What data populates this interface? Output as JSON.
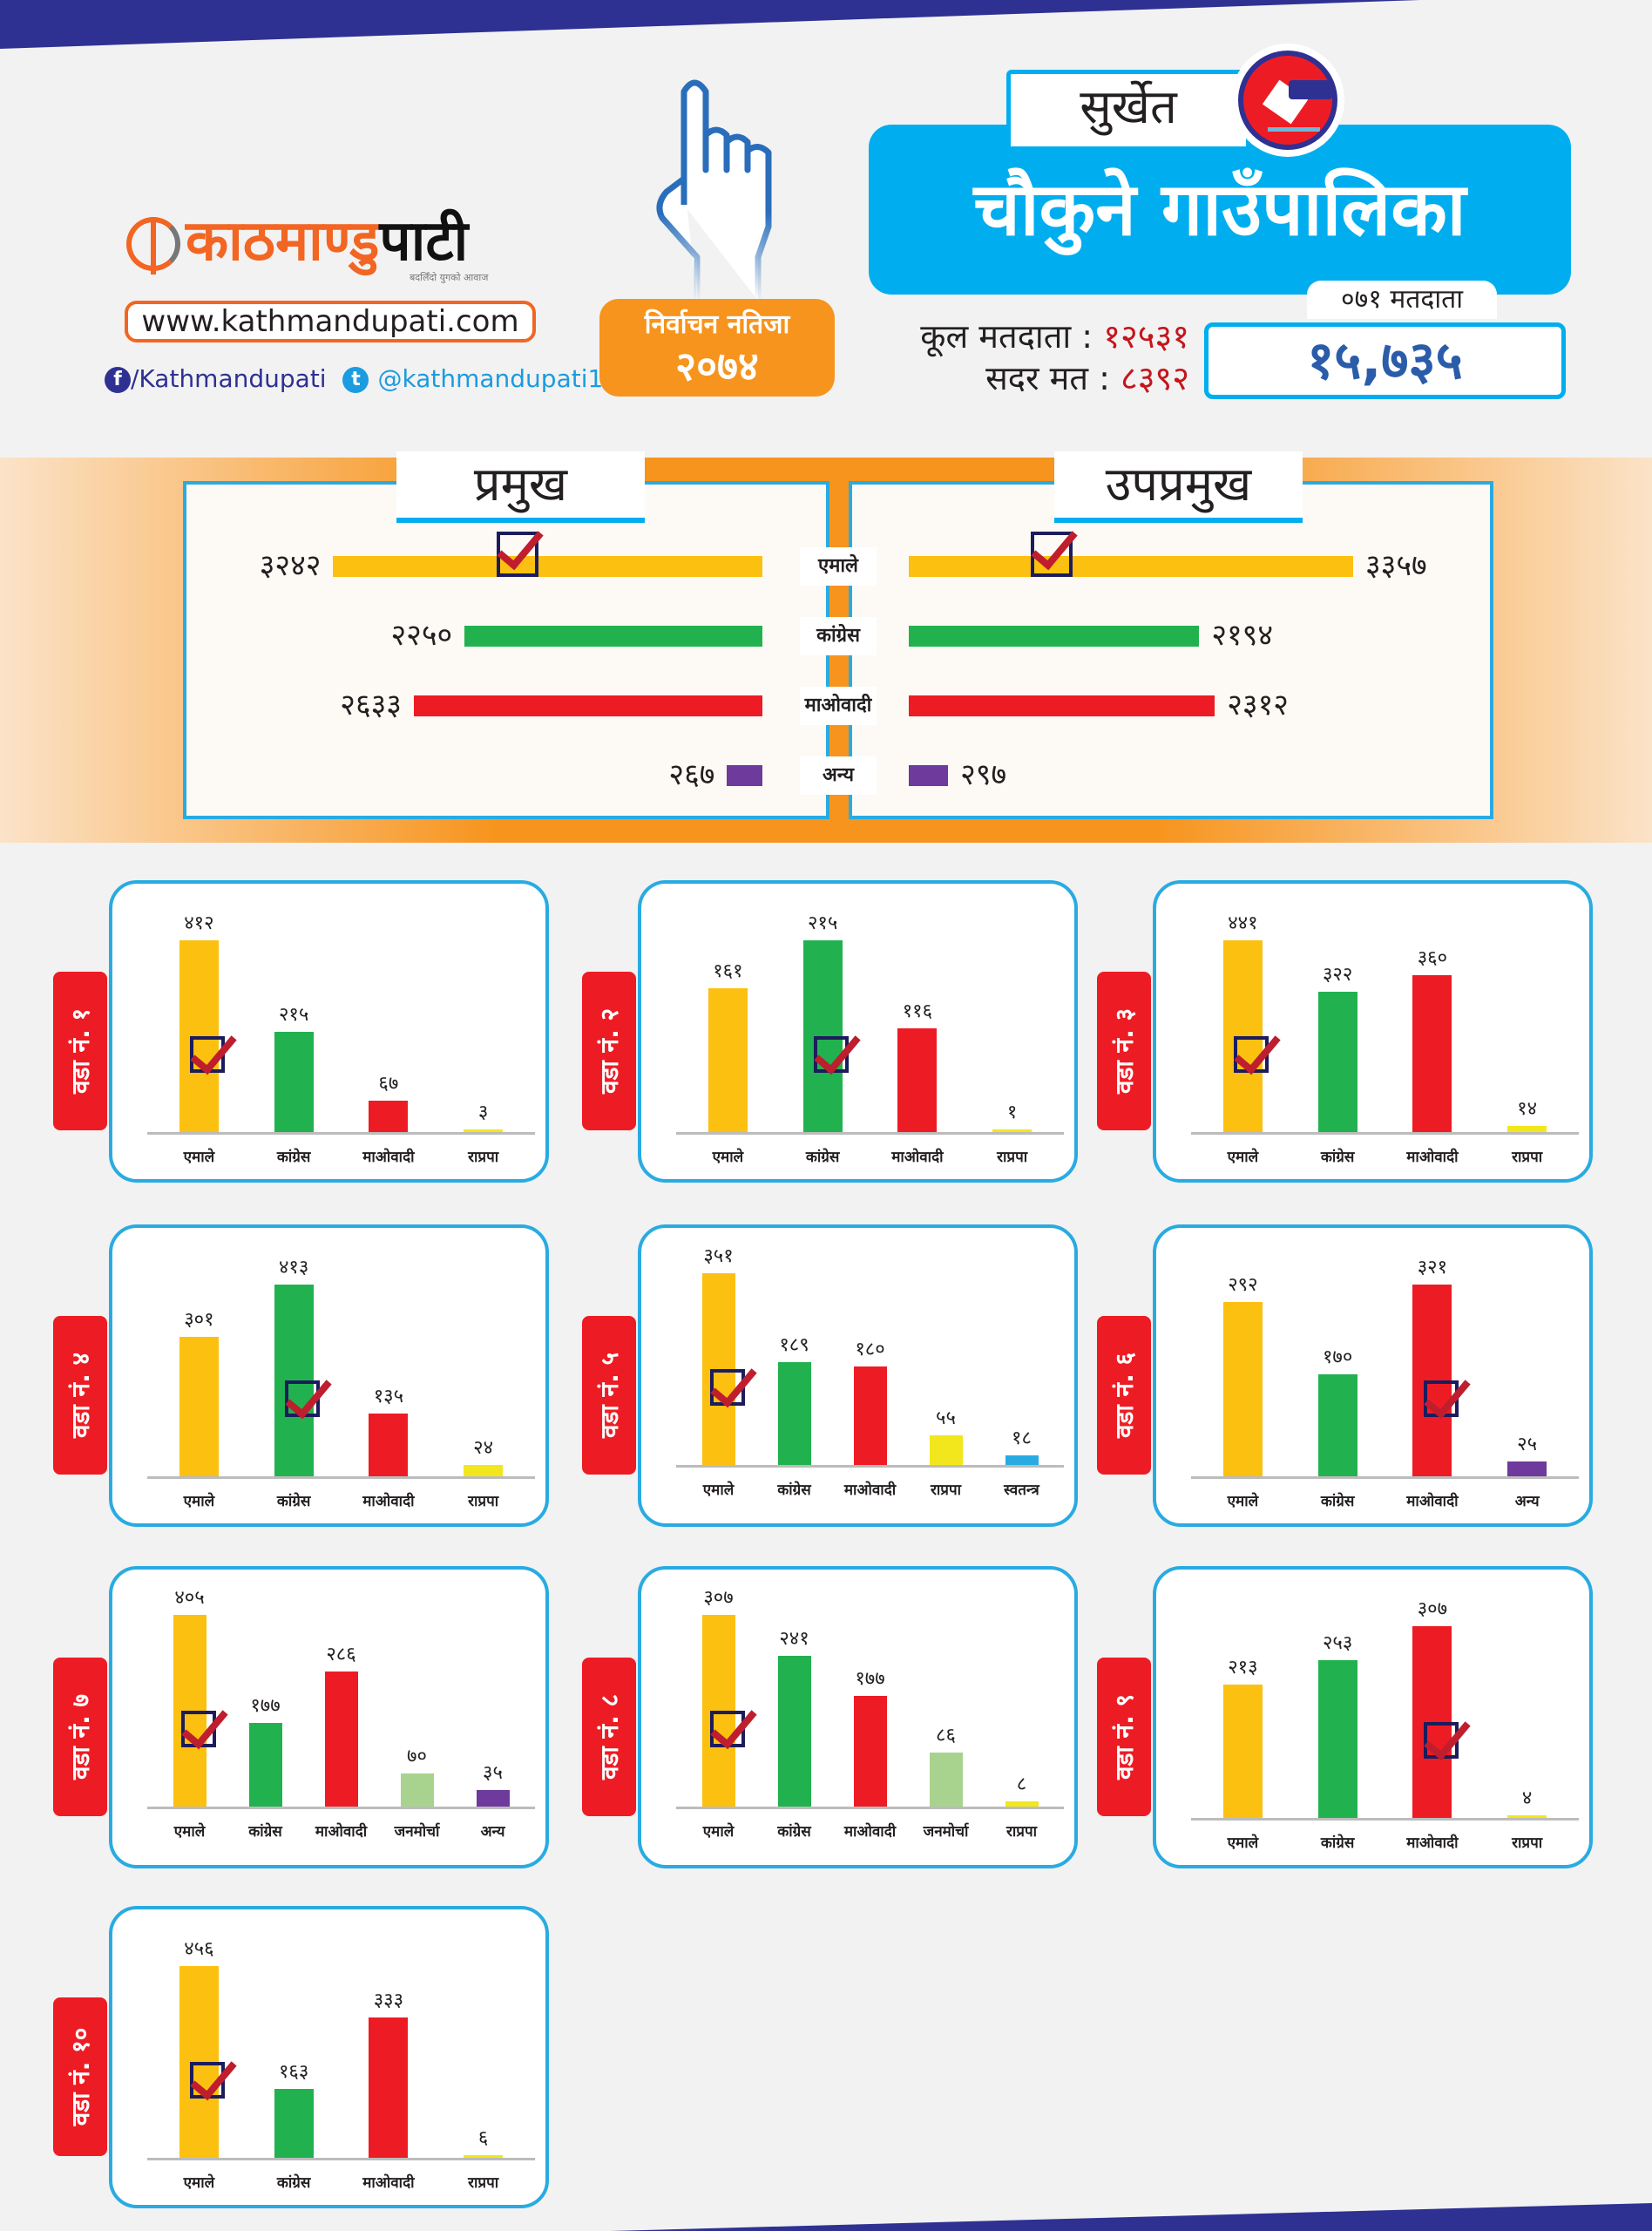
{
  "header": {
    "logo_text_orange": "काठमाण्डु",
    "logo_text_dark": "पाटी",
    "tagline": "बदलिँदो युगको आवाज",
    "website": "www.kathmandupati.com",
    "facebook": "/Kathmandupati",
    "twitter": "@kathmandupati1",
    "badge_title": "निर्वाचन नतिजा",
    "badge_year": "२०७४",
    "district": "सुर्खेत",
    "municipality": "चौकुने गाउँपालिका",
    "total_voters_label": "कूल मतदाता",
    "total_voters": "१२५३१",
    "valid_votes_label": "सदर मत",
    "valid_votes": "८३९२",
    "voters_071_label": "०७१ मतदाता",
    "voters_071": "१५,७३५"
  },
  "colors": {
    "एमाले": "#fcc010",
    "कांग्रेस": "#21b24f",
    "माओवादी": "#ed1c24",
    "राप्रपा": "#f2e71c",
    "अन्य": "#6e3a9c",
    "जनमोर्चा": "#a8d38e",
    "स्वतन्त्र": "#29abe2",
    "accent_blue": "#00aeef",
    "accent_orange": "#f7941d",
    "top_stripe": "#2e3192"
  },
  "chart_data": [
    {
      "type": "bar",
      "orientation": "horizontal",
      "title": "प्रमुख",
      "categories": [
        "एमाले",
        "कांग्रेस",
        "माओवादी",
        "अन्य"
      ],
      "values": [
        3242,
        2250,
        2633,
        267
      ],
      "winner": "एमाले"
    },
    {
      "type": "bar",
      "orientation": "horizontal",
      "title": "उपप्रमुख",
      "categories": [
        "एमाले",
        "कांग्रेस",
        "माओवादी",
        "अन्य"
      ],
      "values": [
        3357,
        2194,
        2312,
        297
      ],
      "winner": "एमाले"
    },
    {
      "type": "bar",
      "title": "वडा नं. १",
      "categories": [
        "एमाले",
        "कांग्रेस",
        "माओवादी",
        "राप्रपा"
      ],
      "values": [
        412,
        215,
        67,
        3
      ],
      "winner": "एमाले"
    },
    {
      "type": "bar",
      "title": "वडा नं. २",
      "categories": [
        "एमाले",
        "कांग्रेस",
        "माओवादी",
        "राप्रपा"
      ],
      "values": [
        161,
        215,
        116,
        1
      ],
      "winner": "कांग्रेस"
    },
    {
      "type": "bar",
      "title": "वडा नं. ३",
      "categories": [
        "एमाले",
        "कांग्रेस",
        "माओवादी",
        "राप्रपा"
      ],
      "values": [
        441,
        322,
        360,
        14
      ],
      "winner": "एमाले"
    },
    {
      "type": "bar",
      "title": "वडा नं. ४",
      "categories": [
        "एमाले",
        "कांग्रेस",
        "माओवादी",
        "राप्रपा"
      ],
      "values": [
        301,
        413,
        135,
        24
      ],
      "winner": "कांग्रेस"
    },
    {
      "type": "bar",
      "title": "वडा नं. ५",
      "categories": [
        "एमाले",
        "कांग्रेस",
        "माओवादी",
        "राप्रपा",
        "स्वतन्त्र"
      ],
      "values": [
        351,
        189,
        180,
        55,
        18
      ],
      "winner": "एमाले"
    },
    {
      "type": "bar",
      "title": "वडा नं. ६",
      "categories": [
        "एमाले",
        "कांग्रेस",
        "माओवादी",
        "अन्य"
      ],
      "values": [
        292,
        170,
        321,
        25
      ],
      "winner": "माओवादी"
    },
    {
      "type": "bar",
      "title": "वडा नं. ७",
      "categories": [
        "एमाले",
        "कांग्रेस",
        "माओवादी",
        "जनमोर्चा",
        "अन्य"
      ],
      "values": [
        405,
        177,
        286,
        70,
        35
      ],
      "winner": "एमाले"
    },
    {
      "type": "bar",
      "title": "वडा नं. ८",
      "categories": [
        "एमाले",
        "कांग्रेस",
        "माओवादी",
        "जनमोर्चा",
        "राप्रपा"
      ],
      "values": [
        307,
        241,
        177,
        86,
        8
      ],
      "winner": "एमाले"
    },
    {
      "type": "bar",
      "title": "वडा नं. ९",
      "categories": [
        "एमाले",
        "कांग्रेस",
        "माओवादी",
        "राप्रपा"
      ],
      "values": [
        213,
        253,
        307,
        4
      ],
      "winner": "माओवादी"
    },
    {
      "type": "bar",
      "title": "वडा नं. १०",
      "categories": [
        "एमाले",
        "कांग्रेस",
        "माओवादी",
        "राप्रपा"
      ],
      "values": [
        456,
        163,
        333,
        6
      ],
      "winner": "एमाले"
    }
  ]
}
